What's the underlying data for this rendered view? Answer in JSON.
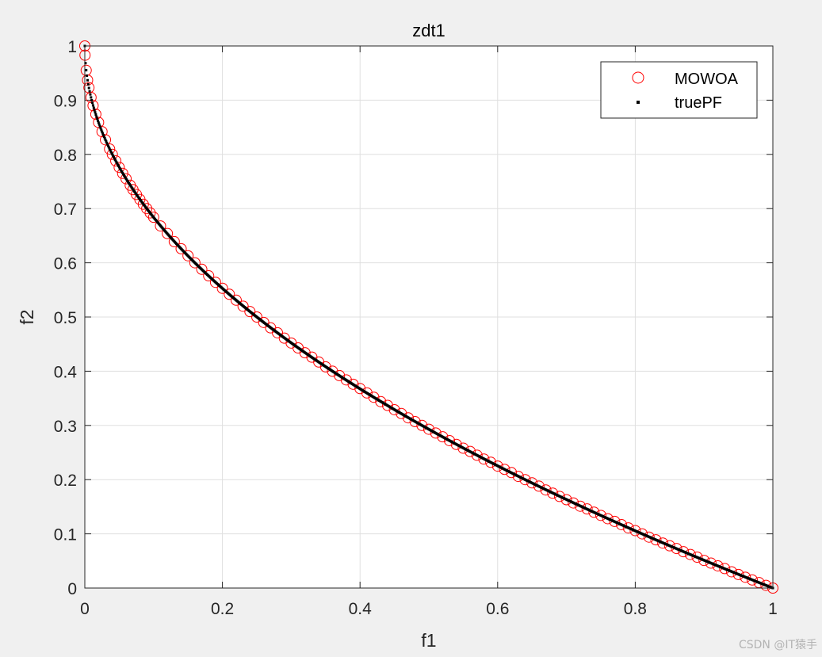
{
  "chart_data": {
    "type": "scatter",
    "title": "zdt1",
    "xlabel": "f1",
    "ylabel": "f2",
    "xlim": [
      0,
      1
    ],
    "ylim": [
      0,
      1
    ],
    "xticks": [
      "0",
      "0.2",
      "0.4",
      "0.6",
      "0.8",
      "1"
    ],
    "yticks": [
      "0",
      "0.1",
      "0.2",
      "0.3",
      "0.4",
      "0.5",
      "0.6",
      "0.7",
      "0.8",
      "0.9",
      "1"
    ],
    "grid": true,
    "legend_position": "top-right",
    "series": [
      {
        "name": "MOWOA",
        "marker": "open-circle",
        "color": "#ff0000",
        "x": [
          0,
          0.0003,
          0.002,
          0.004,
          0.006,
          0.009,
          0.012,
          0.016,
          0.02,
          0.025,
          0.03,
          0.036,
          0.04,
          0.045,
          0.05,
          0.055,
          0.06,
          0.066,
          0.07,
          0.075,
          0.08,
          0.085,
          0.09,
          0.095,
          0.1,
          0.11,
          0.12,
          0.13,
          0.14,
          0.15,
          0.16,
          0.17,
          0.18,
          0.19,
          0.2,
          0.21,
          0.22,
          0.23,
          0.24,
          0.25,
          0.26,
          0.27,
          0.28,
          0.29,
          0.3,
          0.31,
          0.32,
          0.33,
          0.34,
          0.35,
          0.36,
          0.37,
          0.38,
          0.39,
          0.4,
          0.41,
          0.42,
          0.43,
          0.44,
          0.45,
          0.46,
          0.47,
          0.48,
          0.49,
          0.5,
          0.51,
          0.52,
          0.53,
          0.54,
          0.55,
          0.56,
          0.57,
          0.58,
          0.59,
          0.6,
          0.61,
          0.62,
          0.63,
          0.64,
          0.65,
          0.66,
          0.67,
          0.68,
          0.69,
          0.7,
          0.71,
          0.72,
          0.73,
          0.74,
          0.75,
          0.76,
          0.77,
          0.78,
          0.79,
          0.8,
          0.81,
          0.82,
          0.83,
          0.84,
          0.85,
          0.86,
          0.87,
          0.88,
          0.89,
          0.9,
          0.91,
          0.92,
          0.93,
          0.94,
          0.95,
          0.96,
          0.97,
          0.98,
          0.99,
          1.0
        ],
        "y": [
          1.0,
          0.983,
          0.955,
          0.937,
          0.923,
          0.905,
          0.89,
          0.874,
          0.859,
          0.842,
          0.827,
          0.81,
          0.8,
          0.788,
          0.776,
          0.765,
          0.755,
          0.743,
          0.735,
          0.726,
          0.717,
          0.708,
          0.7,
          0.692,
          0.684,
          0.668,
          0.654,
          0.639,
          0.626,
          0.613,
          0.6,
          0.588,
          0.576,
          0.564,
          0.553,
          0.542,
          0.531,
          0.52,
          0.51,
          0.5,
          0.49,
          0.48,
          0.471,
          0.461,
          0.452,
          0.443,
          0.434,
          0.426,
          0.417,
          0.408,
          0.4,
          0.392,
          0.384,
          0.376,
          0.368,
          0.36,
          0.352,
          0.344,
          0.337,
          0.329,
          0.322,
          0.314,
          0.307,
          0.3,
          0.293,
          0.286,
          0.279,
          0.272,
          0.265,
          0.258,
          0.252,
          0.245,
          0.238,
          0.232,
          0.225,
          0.219,
          0.213,
          0.206,
          0.2,
          0.194,
          0.188,
          0.181,
          0.175,
          0.169,
          0.163,
          0.157,
          0.151,
          0.146,
          0.14,
          0.134,
          0.128,
          0.123,
          0.117,
          0.111,
          0.106,
          0.1,
          0.094,
          0.089,
          0.083,
          0.078,
          0.073,
          0.067,
          0.062,
          0.057,
          0.051,
          0.046,
          0.041,
          0.036,
          0.03,
          0.025,
          0.02,
          0.015,
          0.01,
          0.005,
          0.0
        ]
      },
      {
        "name": "truePF",
        "marker": "dot",
        "color": "#000000",
        "function": "f2 = 1 - sqrt(f1)",
        "x_start": 0,
        "x_end": 1,
        "x_step": 0.001
      }
    ]
  },
  "watermark": "CSDN @IT猿手"
}
